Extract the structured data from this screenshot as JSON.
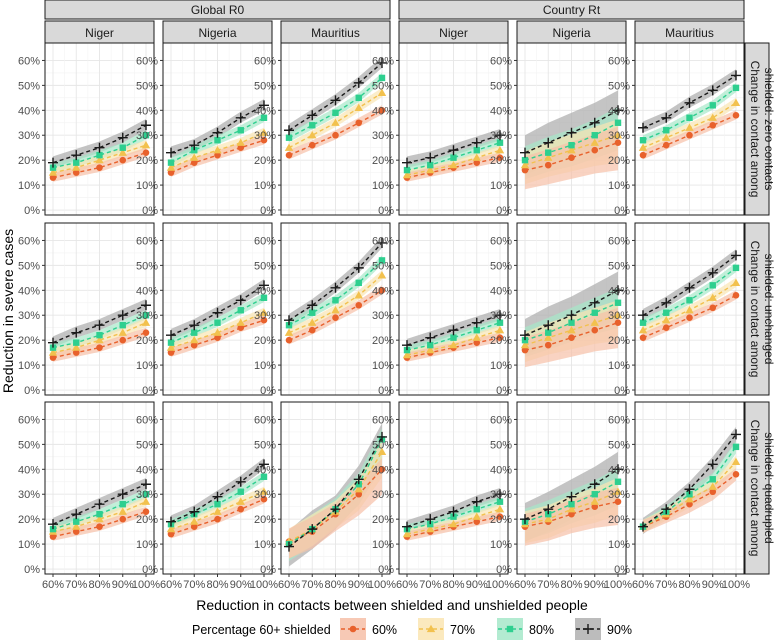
{
  "chart_data": {
    "type": "line",
    "xlabel": "Reduction in contacts between shielded and unshielded people",
    "ylabel": "Reduction in severe cases",
    "x": [
      60,
      70,
      80,
      90,
      100
    ],
    "x_tick_labels": [
      "60%",
      "70%",
      "80%",
      "90%",
      "100%"
    ],
    "y_ticks": [
      0,
      10,
      20,
      30,
      40,
      50,
      60
    ],
    "y_tick_labels": [
      "0%",
      "10%",
      "20%",
      "30%",
      "40%",
      "50%",
      "60%"
    ],
    "ylim": [
      -2,
      67
    ],
    "column_groups": [
      "Global R0",
      "Country Rt"
    ],
    "countries": [
      "Niger",
      "Nigeria",
      "Mauritius"
    ],
    "row_strips": [
      [
        "Change in contact among",
        "shielded: zero contacts"
      ],
      [
        "Change in contact among",
        "shielded: unchanged"
      ],
      [
        "Change in contact among",
        "shielded: quadrupled"
      ]
    ],
    "legend": {
      "title": "Percentage 60+ shielded",
      "entries": [
        {
          "label": "60%",
          "shape": "circle",
          "color": "#e8612c",
          "band": "#f6c0a8"
        },
        {
          "label": "70%",
          "shape": "triangle",
          "color": "#f2c14e",
          "band": "#fae5b3"
        },
        {
          "label": "80%",
          "shape": "square",
          "color": "#2ecf8f",
          "band": "#a6e8c9"
        },
        {
          "label": "90%",
          "shape": "plus",
          "color": "#1a1a1a",
          "band": "#b0b0b0"
        }
      ]
    },
    "panels": [
      [
        {
          "series": [
            [
              13,
              15,
              17,
              20,
              23
            ],
            [
              15,
              17,
              20,
              23,
              26
            ],
            [
              17,
              19,
              22,
              25,
              30
            ],
            [
              19,
              22,
              25,
              29,
              34
            ]
          ],
          "band": [
            2,
            2,
            2,
            2,
            2,
            2,
            2,
            2
          ]
        },
        {
          "series": [
            [
              15,
              19,
              22,
              25,
              28
            ],
            [
              17,
              21,
              24,
              27,
              31
            ],
            [
              19,
              24,
              28,
              32,
              37
            ],
            [
              23,
              26,
              31,
              37,
              42
            ]
          ],
          "band": [
            2,
            2,
            2,
            2,
            2,
            2,
            2,
            2
          ]
        },
        {
          "series": [
            [
              22,
              26,
              30,
              35,
              40
            ],
            [
              25,
              30,
              35,
              41,
              47
            ],
            [
              29,
              34,
              39,
              45,
              53
            ],
            [
              32,
              38,
              44,
              51,
              59
            ]
          ],
          "band": [
            2,
            2,
            2,
            2,
            2,
            2,
            2,
            2
          ]
        },
        {
          "series": [
            [
              13,
              15,
              17,
              19,
              21
            ],
            [
              14,
              16,
              18,
              21,
              24
            ],
            [
              16,
              18,
              21,
              24,
              27
            ],
            [
              19,
              21,
              24,
              27,
              30
            ]
          ],
          "band": [
            2,
            2,
            2,
            2,
            2,
            2,
            2,
            2
          ]
        },
        {
          "series": [
            [
              16,
              18,
              21,
              24,
              27
            ],
            [
              18,
              21,
              24,
              27,
              30
            ],
            [
              20,
              23,
              26,
              30,
              35
            ],
            [
              23,
              27,
              31,
              35,
              40
            ]
          ],
          "band": [
            9,
            9,
            10,
            11,
            13,
            13,
            13,
            13
          ]
        },
        {
          "series": [
            [
              22,
              26,
              30,
              34,
              38
            ],
            [
              25,
              29,
              33,
              37,
              43
            ],
            [
              28,
              32,
              37,
              42,
              49
            ],
            [
              33,
              37,
              43,
              48,
              54
            ]
          ],
          "band": [
            2,
            2,
            2,
            2,
            2,
            2,
            2,
            2
          ]
        }
      ],
      [
        {
          "series": [
            [
              13,
              15,
              17,
              20,
              23
            ],
            [
              15,
              17,
              20,
              23,
              27
            ],
            [
              17,
              19,
              22,
              26,
              30
            ],
            [
              19,
              23,
              26,
              30,
              34
            ]
          ],
          "band": [
            2,
            2,
            2,
            2,
            2,
            2,
            2,
            2
          ]
        },
        {
          "series": [
            [
              15,
              18,
              21,
              25,
              28
            ],
            [
              17,
              20,
              23,
              27,
              31
            ],
            [
              19,
              23,
              27,
              32,
              37
            ],
            [
              22,
              26,
              31,
              36,
              42
            ]
          ],
          "band": [
            2,
            2,
            2,
            2,
            2,
            2,
            2,
            2
          ]
        },
        {
          "series": [
            [
              20,
              24,
              29,
              34,
              40
            ],
            [
              23,
              27,
              32,
              38,
              46
            ],
            [
              26,
              31,
              36,
              43,
              52
            ],
            [
              28,
              34,
              41,
              49,
              59
            ]
          ],
          "band": [
            2,
            2,
            2,
            2,
            2,
            2,
            2,
            2
          ]
        },
        {
          "series": [
            [
              13,
              15,
              17,
              19,
              21
            ],
            [
              14,
              16,
              18,
              21,
              24
            ],
            [
              16,
              18,
              21,
              24,
              27
            ],
            [
              18,
              21,
              24,
              27,
              30
            ]
          ],
          "band": [
            2,
            2,
            2,
            2,
            2,
            2,
            2,
            2
          ]
        },
        {
          "series": [
            [
              16,
              18,
              21,
              24,
              27
            ],
            [
              18,
              21,
              24,
              27,
              30
            ],
            [
              20,
              23,
              27,
              31,
              35
            ],
            [
              22,
              26,
              30,
              35,
              40
            ]
          ],
          "band": [
            8,
            8,
            9,
            10,
            12,
            12,
            12,
            12
          ]
        },
        {
          "series": [
            [
              21,
              25,
              29,
              33,
              38
            ],
            [
              24,
              28,
              32,
              37,
              43
            ],
            [
              27,
              31,
              36,
              42,
              49
            ],
            [
              30,
              35,
              41,
              47,
              54
            ]
          ],
          "band": [
            2,
            2,
            2,
            2,
            2,
            2,
            2,
            2
          ]
        }
      ],
      [
        {
          "series": [
            [
              13,
              15,
              17,
              20,
              23
            ],
            [
              15,
              17,
              20,
              23,
              27
            ],
            [
              16,
              19,
              22,
              26,
              30
            ],
            [
              18,
              22,
              26,
              30,
              34
            ]
          ],
          "band": [
            2,
            2,
            2,
            2,
            2,
            2,
            2,
            2
          ]
        },
        {
          "series": [
            [
              14,
              17,
              20,
              24,
              28
            ],
            [
              16,
              19,
              23,
              27,
              31
            ],
            [
              18,
              22,
              26,
              31,
              37
            ],
            [
              19,
              23,
              29,
              35,
              42
            ]
          ],
          "band": [
            2,
            2,
            2,
            2,
            2,
            2,
            2,
            2
          ]
        },
        {
          "series": [
            [
              11,
              15,
              22,
              30,
              40
            ],
            [
              11,
              16,
              23,
              32,
              47
            ],
            [
              10,
              16,
              24,
              34,
              52
            ],
            [
              9,
              16,
              24,
              36,
              53
            ]
          ],
          "band": [
            8,
            8,
            8,
            10,
            12,
            8,
            8,
            8
          ]
        },
        {
          "series": [
            [
              13,
              15,
              17,
              19,
              21
            ],
            [
              14,
              16,
              18,
              21,
              24
            ],
            [
              16,
              18,
              21,
              24,
              27
            ],
            [
              17,
              20,
              23,
              27,
              30
            ]
          ],
          "band": [
            2,
            2,
            2,
            2,
            2,
            2,
            2,
            2
          ]
        },
        {
          "series": [
            [
              17,
              19,
              22,
              25,
              27
            ],
            [
              18,
              20,
              24,
              27,
              31
            ],
            [
              19,
              22,
              26,
              30,
              35
            ],
            [
              20,
              24,
              29,
              34,
              40
            ]
          ],
          "band": [
            9,
            9,
            9,
            10,
            11,
            11,
            11,
            11
          ]
        },
        {
          "series": [
            [
              17,
              21,
              26,
              31,
              38
            ],
            [
              17,
              22,
              28,
              33,
              43
            ],
            [
              17,
              23,
              30,
              36,
              49
            ],
            [
              17,
              24,
              32,
              42,
              54
            ]
          ],
          "band": [
            3,
            3,
            4,
            4,
            3,
            3,
            3,
            3
          ]
        }
      ]
    ]
  }
}
